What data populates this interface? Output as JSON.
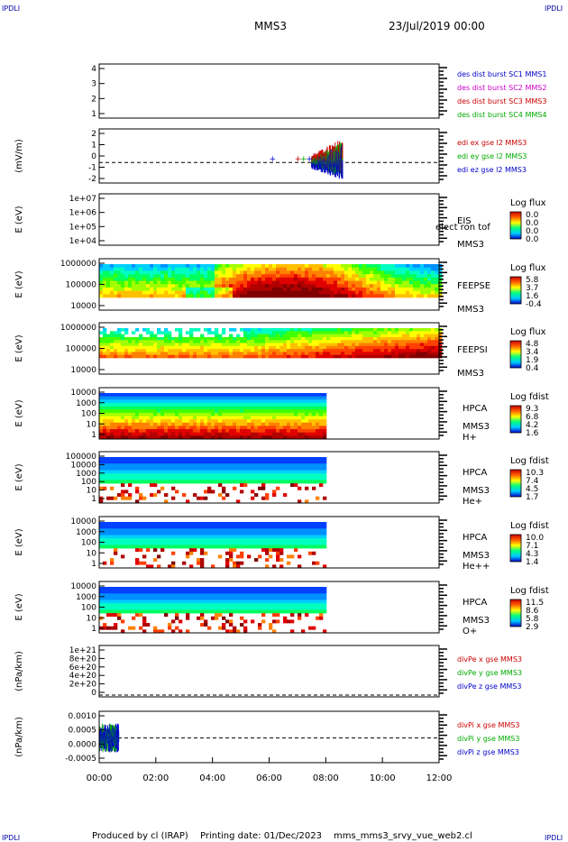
{
  "corner_label": "IPDLI",
  "header": {
    "title": "MMS3",
    "date": "23/Jul/2019 00:00"
  },
  "footer": {
    "produced": "Produced by cl (IRAP)",
    "printing": "Printing date: 01/Dec/2023",
    "script": "mms_mms3_srvy_vue_web2.cl"
  },
  "x_ticks": [
    "00:00",
    "02:00",
    "04:00",
    "06:00",
    "08:00",
    "10:00",
    "12:00"
  ],
  "panels": [
    {
      "id": "p1",
      "ylabel": "",
      "yticks": [
        "4",
        "3",
        "2",
        "1"
      ],
      "legend": [
        {
          "text": "des dist burst SC1 MMS1",
          "color": "#0000cc"
        },
        {
          "text": "des dist burst SC2 MMS2",
          "color": "#cc00cc"
        },
        {
          "text": "des dist burst SC3 MMS3",
          "color": "#cc0000"
        },
        {
          "text": "des dist burst SC4 MMS4",
          "color": "#00aa00"
        }
      ]
    },
    {
      "id": "p2",
      "ylabel": "(mV/m)",
      "yticks": [
        "2",
        "1",
        "0",
        "-1",
        "-2"
      ],
      "legend": [
        {
          "text": "edi ex gse l2 MMS3",
          "color": "#cc0000"
        },
        {
          "text": "edi ey gse l2 MMS3",
          "color": "#00aa00"
        },
        {
          "text": "edi ez gse l2 MMS3",
          "color": "#0000cc"
        }
      ]
    },
    {
      "id": "p3",
      "ylabel": "E (eV)",
      "yticks": [
        "1e+07",
        "1e+06",
        "1e+05",
        "1e+04"
      ],
      "labels": [
        "EIS",
        "MMS3"
      ],
      "overlay": "elect ron tof",
      "cbar_title": "Log flux",
      "cbar_ticks": [
        "0.0",
        "0.0",
        "0.0",
        "0.0"
      ]
    },
    {
      "id": "p4",
      "ylabel": "E (eV)",
      "yticks": [
        "1000000",
        "100000",
        "10000"
      ],
      "labels": [
        "FEEPSE",
        "MMS3"
      ],
      "cbar_title": "Log flux",
      "cbar_ticks": [
        "5.8",
        "3.7",
        "1.6",
        "-0.4"
      ]
    },
    {
      "id": "p5",
      "ylabel": "E (eV)",
      "yticks": [
        "1000000",
        "100000",
        "10000"
      ],
      "labels": [
        "FEEPSI",
        "MMS3"
      ],
      "cbar_title": "Log flux",
      "cbar_ticks": [
        "4.8",
        "3.4",
        "1.9",
        "0.4"
      ]
    },
    {
      "id": "p6",
      "ylabel": "E (eV)",
      "yticks": [
        "10000",
        "1000",
        "100",
        "10",
        "1"
      ],
      "labels": [
        "HPCA",
        "MMS3",
        "H+"
      ],
      "cbar_title": "Log fdist",
      "cbar_ticks": [
        "9.3",
        "6.8",
        "4.2",
        "1.6"
      ]
    },
    {
      "id": "p7",
      "ylabel": "E (eV)",
      "yticks": [
        "100000",
        "10000",
        "1000",
        "100",
        "10",
        "1"
      ],
      "labels": [
        "HPCA",
        "MMS3",
        "He+"
      ],
      "cbar_title": "Log fdist",
      "cbar_ticks": [
        "10.3",
        "7.4",
        "4.5",
        "1.7"
      ]
    },
    {
      "id": "p8",
      "ylabel": "E (eV)",
      "yticks": [
        "10000",
        "1000",
        "100",
        "10",
        "1"
      ],
      "labels": [
        "HPCA",
        "MMS3",
        "He++"
      ],
      "cbar_title": "Log fdist",
      "cbar_ticks": [
        "10.0",
        "7.1",
        "4.3",
        "1.4"
      ]
    },
    {
      "id": "p9",
      "ylabel": "E (eV)",
      "yticks": [
        "10000",
        "1000",
        "100",
        "10",
        "1"
      ],
      "labels": [
        "HPCA",
        "MMS3",
        "O+"
      ],
      "cbar_title": "Log fdist",
      "cbar_ticks": [
        "11.5",
        "8.6",
        "5.8",
        "2.9"
      ]
    },
    {
      "id": "p10",
      "ylabel": "(nPa/km)",
      "yticks": [
        "1e+21",
        "8e+20",
        "6e+20",
        "4e+20",
        "2e+20",
        "0"
      ],
      "legend": [
        {
          "text": "divPe x gse MMS3",
          "color": "#cc0000"
        },
        {
          "text": "divPe y gse MMS3",
          "color": "#00aa00"
        },
        {
          "text": "divPe z gse MMS3",
          "color": "#0000cc"
        }
      ]
    },
    {
      "id": "p11",
      "ylabel": "(nPa/km)",
      "yticks": [
        "0.0010",
        "0.0005",
        "0.0000",
        "-0.0005"
      ],
      "legend": [
        {
          "text": "divPi x gse MMS3",
          "color": "#cc0000"
        },
        {
          "text": "divPi y gse MMS3",
          "color": "#00aa00"
        },
        {
          "text": "divPi z gse MMS3",
          "color": "#0000cc"
        }
      ]
    }
  ],
  "chart_data": {
    "type": "heatmap",
    "x_range_hours": [
      0,
      12
    ],
    "spectrogram_coverage_hours": {
      "FEEPSE": [
        0,
        12
      ],
      "FEEPSI": [
        0,
        12
      ],
      "HPCA": [
        0,
        8
      ]
    },
    "edi_data_hours": [
      6,
      8.6
    ],
    "divPi_data_hours": [
      0,
      0.7
    ],
    "colormap": [
      "#0000ff",
      "#00c8ff",
      "#00ff80",
      "#ffff00",
      "#ff8000",
      "#e00000",
      "#900000"
    ]
  }
}
